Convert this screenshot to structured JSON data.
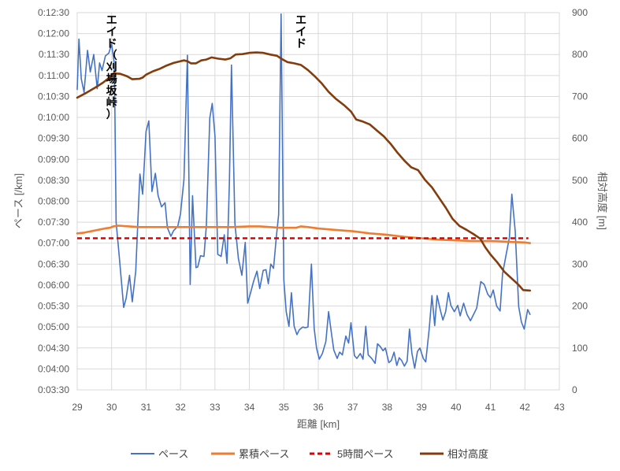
{
  "chart_data": {
    "type": "line",
    "xlabel": "距離 [km]",
    "ylabel_left": "ペース [/km]",
    "ylabel_right": "相対高度 [m]",
    "xlim": [
      29,
      43
    ],
    "x_ticks": [
      29,
      30,
      31,
      32,
      33,
      34,
      35,
      36,
      37,
      38,
      39,
      40,
      41,
      42,
      43
    ],
    "ylim_left_seconds": [
      210,
      750
    ],
    "y_ticks_left": [
      "0:03:30",
      "0:04:00",
      "0:04:30",
      "0:05:00",
      "0:05:30",
      "0:06:00",
      "0:06:30",
      "0:07:00",
      "0:07:30",
      "0:08:00",
      "0:08:30",
      "0:09:00",
      "0:09:30",
      "0:10:00",
      "0:10:30",
      "0:11:00",
      "0:11:30",
      "0:12:00",
      "0:12:30"
    ],
    "ylim_right": [
      0,
      900
    ],
    "y_ticks_right": [
      0,
      100,
      200,
      300,
      400,
      500,
      600,
      700,
      800,
      900
    ],
    "grid": true,
    "legend_position": "bottom",
    "annotations": [
      {
        "x": 30.0,
        "text": "エイド（刈場坂峠）"
      },
      {
        "x": 35.5,
        "text": "エイド"
      }
    ],
    "series": [
      {
        "name": "ペース",
        "axis": "left",
        "color": "#4472C4",
        "points": [
          [
            29.0,
            640
          ],
          [
            29.05,
            712
          ],
          [
            29.12,
            655
          ],
          [
            29.2,
            636
          ],
          [
            29.3,
            696
          ],
          [
            29.38,
            665
          ],
          [
            29.48,
            690
          ],
          [
            29.58,
            641
          ],
          [
            29.65,
            678
          ],
          [
            29.72,
            667
          ],
          [
            29.82,
            688
          ],
          [
            29.92,
            692
          ],
          [
            30.0,
            705
          ],
          [
            30.08,
            676
          ],
          [
            30.13,
            450
          ],
          [
            30.22,
            402
          ],
          [
            30.35,
            328
          ],
          [
            30.42,
            341
          ],
          [
            30.52,
            374
          ],
          [
            30.6,
            336
          ],
          [
            30.7,
            380
          ],
          [
            30.82,
            519
          ],
          [
            30.9,
            490
          ],
          [
            31.0,
            580
          ],
          [
            31.08,
            595
          ],
          [
            31.17,
            494
          ],
          [
            31.27,
            520
          ],
          [
            31.35,
            488
          ],
          [
            31.45,
            472
          ],
          [
            31.55,
            478
          ],
          [
            31.62,
            442
          ],
          [
            31.72,
            430
          ],
          [
            31.8,
            438
          ],
          [
            31.92,
            444
          ],
          [
            32.0,
            462
          ],
          [
            32.1,
            511
          ],
          [
            32.2,
            689
          ],
          [
            32.28,
            361
          ],
          [
            32.35,
            488
          ],
          [
            32.45,
            385
          ],
          [
            32.5,
            386
          ],
          [
            32.58,
            402
          ],
          [
            32.68,
            401
          ],
          [
            32.75,
            444
          ],
          [
            32.85,
            599
          ],
          [
            32.92,
            620
          ],
          [
            33.0,
            573
          ],
          [
            33.08,
            404
          ],
          [
            33.18,
            401
          ],
          [
            33.27,
            432
          ],
          [
            33.35,
            391
          ],
          [
            33.42,
            507
          ],
          [
            33.48,
            675
          ],
          [
            33.58,
            448
          ],
          [
            33.68,
            398
          ],
          [
            33.78,
            374
          ],
          [
            33.88,
            421
          ],
          [
            33.95,
            334
          ],
          [
            34.05,
            352
          ],
          [
            34.12,
            365
          ],
          [
            34.22,
            380
          ],
          [
            34.3,
            355
          ],
          [
            34.4,
            381
          ],
          [
            34.48,
            382
          ],
          [
            34.55,
            362
          ],
          [
            34.62,
            390
          ],
          [
            34.7,
            384
          ],
          [
            34.78,
            428
          ],
          [
            34.85,
            461
          ],
          [
            34.92,
            748
          ],
          [
            35.0,
            367
          ],
          [
            35.07,
            322
          ],
          [
            35.15,
            301
          ],
          [
            35.22,
            349
          ],
          [
            35.3,
            301
          ],
          [
            35.38,
            289
          ],
          [
            35.45,
            296
          ],
          [
            35.55,
            300
          ],
          [
            35.62,
            299
          ],
          [
            35.7,
            300
          ],
          [
            35.8,
            390
          ],
          [
            35.88,
            298
          ],
          [
            35.95,
            270
          ],
          [
            36.03,
            254
          ],
          [
            36.12,
            262
          ],
          [
            36.22,
            279
          ],
          [
            36.3,
            322
          ],
          [
            36.38,
            292
          ],
          [
            36.45,
            267
          ],
          [
            36.55,
            255
          ],
          [
            36.62,
            264
          ],
          [
            36.7,
            260
          ],
          [
            36.8,
            287
          ],
          [
            36.88,
            277
          ],
          [
            36.95,
            306
          ],
          [
            37.05,
            259
          ],
          [
            37.12,
            255
          ],
          [
            37.22,
            262
          ],
          [
            37.3,
            254
          ],
          [
            37.38,
            301
          ],
          [
            37.45,
            260
          ],
          [
            37.55,
            255
          ],
          [
            37.65,
            248
          ],
          [
            37.72,
            276
          ],
          [
            37.8,
            272
          ],
          [
            37.88,
            266
          ],
          [
            37.95,
            270
          ],
          [
            38.05,
            249
          ],
          [
            38.12,
            252
          ],
          [
            38.2,
            264
          ],
          [
            38.28,
            245
          ],
          [
            38.35,
            256
          ],
          [
            38.42,
            252
          ],
          [
            38.5,
            244
          ],
          [
            38.58,
            251
          ],
          [
            38.65,
            297
          ],
          [
            38.72,
            262
          ],
          [
            38.8,
            241
          ],
          [
            38.88,
            265
          ],
          [
            38.95,
            270
          ],
          [
            39.05,
            255
          ],
          [
            39.12,
            250
          ],
          [
            39.22,
            297
          ],
          [
            39.3,
            345
          ],
          [
            39.38,
            302
          ],
          [
            39.45,
            345
          ],
          [
            39.55,
            323
          ],
          [
            39.62,
            310
          ],
          [
            39.7,
            322
          ],
          [
            39.78,
            349
          ],
          [
            39.85,
            331
          ],
          [
            39.95,
            322
          ],
          [
            40.05,
            331
          ],
          [
            40.12,
            316
          ],
          [
            40.22,
            334
          ],
          [
            40.32,
            318
          ],
          [
            40.42,
            309
          ],
          [
            40.5,
            317
          ],
          [
            40.6,
            327
          ],
          [
            40.72,
            365
          ],
          [
            40.82,
            361
          ],
          [
            40.92,
            347
          ],
          [
            41.0,
            342
          ],
          [
            41.08,
            353
          ],
          [
            41.18,
            330
          ],
          [
            41.28,
            323
          ],
          [
            41.35,
            376
          ],
          [
            41.45,
            402
          ],
          [
            41.55,
            428
          ],
          [
            41.62,
            490
          ],
          [
            41.72,
            437
          ],
          [
            41.82,
            329
          ],
          [
            41.9,
            307
          ],
          [
            41.98,
            297
          ],
          [
            42.08,
            325
          ],
          [
            42.15,
            318
          ]
        ]
      },
      {
        "name": "累積ペース",
        "axis": "left",
        "color": "#ED7D31",
        "points": [
          [
            29.0,
            434
          ],
          [
            29.2,
            435
          ],
          [
            29.4,
            437
          ],
          [
            29.6,
            439
          ],
          [
            29.8,
            441
          ],
          [
            29.95,
            442
          ],
          [
            30.05,
            444
          ],
          [
            30.2,
            445
          ],
          [
            30.5,
            444
          ],
          [
            30.8,
            443
          ],
          [
            31.0,
            443
          ],
          [
            31.5,
            443
          ],
          [
            32.0,
            443
          ],
          [
            32.5,
            443
          ],
          [
            33.0,
            443
          ],
          [
            33.5,
            443
          ],
          [
            34.0,
            444
          ],
          [
            34.3,
            444
          ],
          [
            34.6,
            443
          ],
          [
            34.9,
            442
          ],
          [
            35.2,
            442
          ],
          [
            35.35,
            442
          ],
          [
            35.5,
            444
          ],
          [
            35.7,
            443
          ],
          [
            36.0,
            441
          ],
          [
            36.5,
            439
          ],
          [
            37.0,
            437
          ],
          [
            37.5,
            434
          ],
          [
            38.0,
            432
          ],
          [
            38.5,
            429
          ],
          [
            39.0,
            427
          ],
          [
            39.5,
            425
          ],
          [
            40.0,
            424
          ],
          [
            40.5,
            423
          ],
          [
            41.0,
            423
          ],
          [
            41.5,
            422
          ],
          [
            42.0,
            421
          ],
          [
            42.15,
            420
          ]
        ]
      },
      {
        "name": "5時間ペース",
        "axis": "left",
        "color": "#E00000",
        "dashed": true,
        "points": [
          [
            29.0,
            427
          ],
          [
            42.1,
            427
          ]
        ]
      },
      {
        "name": "相対高度",
        "axis": "right",
        "color": "#843C0C",
        "points": [
          [
            29.0,
            697
          ],
          [
            29.25,
            708
          ],
          [
            29.5,
            720
          ],
          [
            29.75,
            733
          ],
          [
            29.95,
            746
          ],
          [
            30.05,
            755
          ],
          [
            30.25,
            754
          ],
          [
            30.45,
            748
          ],
          [
            30.6,
            741
          ],
          [
            30.8,
            742
          ],
          [
            30.9,
            745
          ],
          [
            31.0,
            752
          ],
          [
            31.2,
            760
          ],
          [
            31.4,
            766
          ],
          [
            31.6,
            774
          ],
          [
            31.8,
            780
          ],
          [
            32.0,
            784
          ],
          [
            32.1,
            786
          ],
          [
            32.2,
            784
          ],
          [
            32.3,
            779
          ],
          [
            32.45,
            779
          ],
          [
            32.6,
            786
          ],
          [
            32.75,
            788
          ],
          [
            32.9,
            793
          ],
          [
            33.1,
            790
          ],
          [
            33.3,
            788
          ],
          [
            33.45,
            791
          ],
          [
            33.6,
            800
          ],
          [
            33.8,
            801
          ],
          [
            34.0,
            804
          ],
          [
            34.2,
            805
          ],
          [
            34.4,
            804
          ],
          [
            34.6,
            800
          ],
          [
            34.8,
            797
          ],
          [
            34.95,
            789
          ],
          [
            35.1,
            782
          ],
          [
            35.3,
            779
          ],
          [
            35.5,
            775
          ],
          [
            35.7,
            763
          ],
          [
            35.9,
            748
          ],
          [
            36.1,
            731
          ],
          [
            36.3,
            711
          ],
          [
            36.5,
            695
          ],
          [
            36.75,
            679
          ],
          [
            36.95,
            664
          ],
          [
            37.1,
            645
          ],
          [
            37.3,
            640
          ],
          [
            37.5,
            633
          ],
          [
            37.7,
            619
          ],
          [
            37.9,
            605
          ],
          [
            38.1,
            587
          ],
          [
            38.3,
            566
          ],
          [
            38.5,
            547
          ],
          [
            38.7,
            531
          ],
          [
            38.9,
            524
          ],
          [
            39.1,
            501
          ],
          [
            39.3,
            483
          ],
          [
            39.5,
            459
          ],
          [
            39.7,
            435
          ],
          [
            39.9,
            408
          ],
          [
            40.1,
            391
          ],
          [
            40.3,
            382
          ],
          [
            40.5,
            372
          ],
          [
            40.7,
            361
          ],
          [
            40.85,
            340
          ],
          [
            41.0,
            323
          ],
          [
            41.2,
            304
          ],
          [
            41.4,
            282
          ],
          [
            41.6,
            267
          ],
          [
            41.8,
            252
          ],
          [
            41.95,
            238
          ],
          [
            42.15,
            237
          ]
        ]
      }
    ]
  }
}
